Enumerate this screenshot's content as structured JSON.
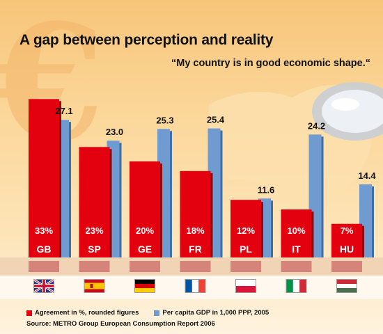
{
  "title": "A gap between perception and reality",
  "subtitle": "“My country is in good economic shape.“",
  "legend": {
    "agreement": "Agreement in %, rounded figures",
    "gdp": "Per capita GDP in 1,000 PPP, 2005"
  },
  "source": "Source: METRO Group European Consumption Report 2006",
  "colors": {
    "agreement": "#e3000f",
    "gdp": "#6f9bd0",
    "band": "#d6837a"
  },
  "chart_data": {
    "type": "bar",
    "categories": [
      "GB",
      "SP",
      "GE",
      "FR",
      "PL",
      "IT",
      "HU"
    ],
    "series": [
      {
        "name": "Agreement in %, rounded figures",
        "values": [
          33,
          23,
          20,
          18,
          12,
          10,
          7
        ],
        "labels": [
          "33%",
          "23%",
          "20%",
          "18%",
          "12%",
          "10%",
          "7%"
        ]
      },
      {
        "name": "Per capita GDP in 1,000 PPP, 2005",
        "values": [
          27.1,
          23.0,
          25.3,
          25.4,
          11.6,
          24.2,
          14.4
        ],
        "labels": [
          "27.1",
          "23.0",
          "25.3",
          "25.4",
          "11.6",
          "24.2",
          "14.4"
        ]
      }
    ],
    "flags": [
      "uk-flag-icon",
      "spain-flag-icon",
      "germany-flag-icon",
      "france-flag-icon",
      "poland-flag-icon",
      "italy-flag-icon",
      "hungary-flag-icon"
    ]
  }
}
